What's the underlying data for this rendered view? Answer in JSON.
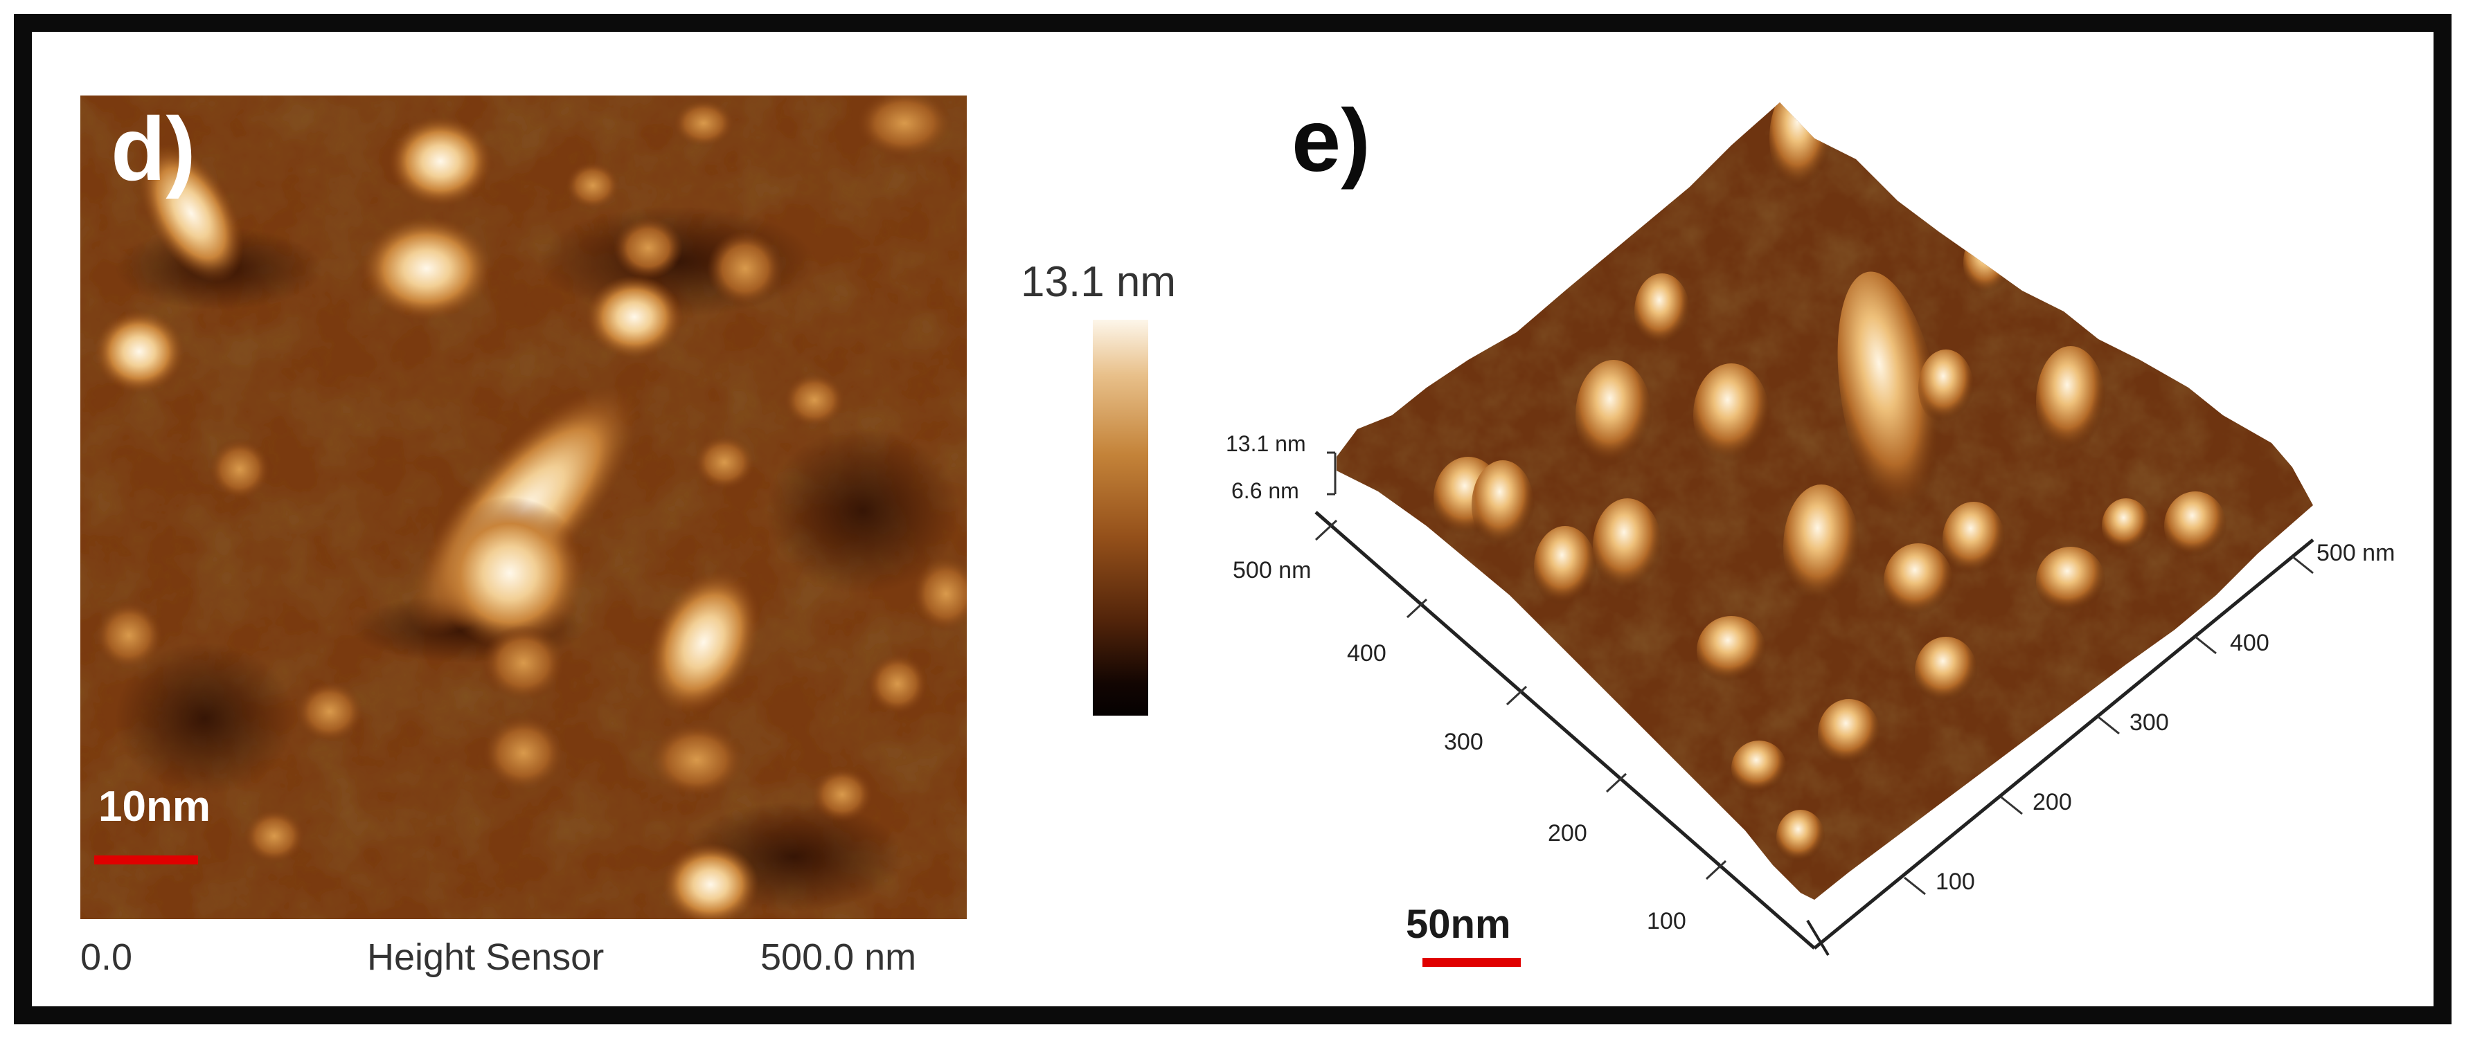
{
  "panels": {
    "d": {
      "label": "d)",
      "scale_bar": "10nm",
      "x_axis": {
        "min": "0.0",
        "title": "Height Sensor",
        "max": "500.0 nm"
      },
      "colorbar_max": "13.1 nm"
    },
    "e": {
      "label": "e)",
      "scale_bar": "50nm",
      "z_ticks": [
        "13.1 nm",
        "6.6 nm"
      ],
      "left_axis_ticks": [
        "500 nm",
        "400",
        "300",
        "200",
        "100"
      ],
      "right_axis_ticks": [
        "500 nm",
        "400",
        "300",
        "200",
        "100"
      ]
    }
  },
  "colors": {
    "frame": "#0b0b0b",
    "scale_bar": "#e00000",
    "afm_dark": "#3b1a06",
    "afm_bright": "#fdf6ea"
  }
}
